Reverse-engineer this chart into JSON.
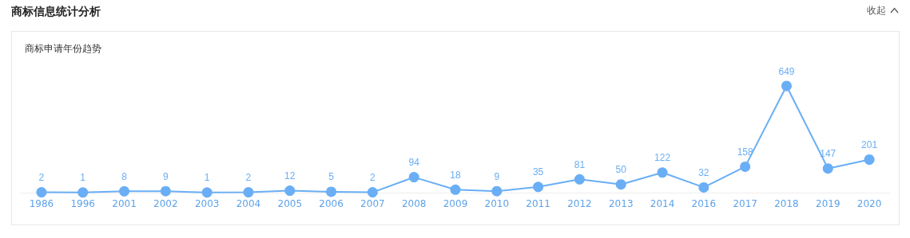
{
  "chart_data": {
    "type": "line",
    "title": "商标信息统计分析",
    "subtitle": "商标申请年份趋势",
    "annotations": [
      "收起"
    ],
    "categories": [
      "1986",
      "1996",
      "2001",
      "2002",
      "2003",
      "2004",
      "2005",
      "2006",
      "2007",
      "2008",
      "2009",
      "2010",
      "2011",
      "2012",
      "2013",
      "2014",
      "2016",
      "2017",
      "2018",
      "2019",
      "2020"
    ],
    "series": [
      {
        "color": "#6aaef5",
        "values": [
          2,
          1,
          8,
          9,
          1,
          2,
          12,
          5,
          2,
          94,
          18,
          9,
          35,
          81,
          50,
          122,
          32,
          158,
          649,
          147,
          201
        ]
      }
    ],
    "data_labels": true,
    "marker": "circle",
    "line_style": "solid"
  }
}
